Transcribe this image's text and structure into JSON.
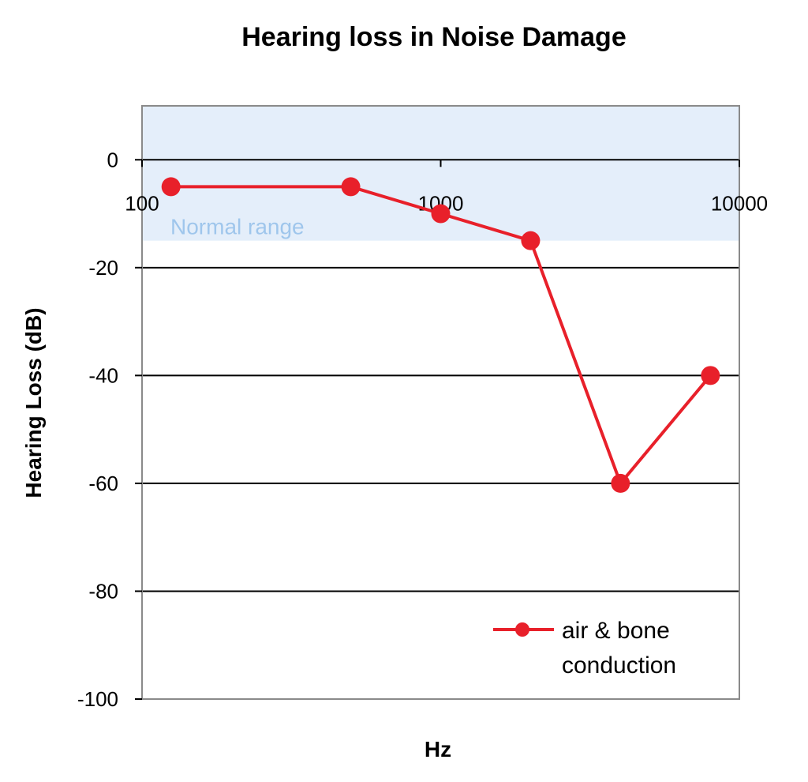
{
  "chart_data": {
    "type": "line",
    "title": "Hearing loss in Noise Damage",
    "xlabel": "Hz",
    "ylabel": "Hearing Loss (dB)",
    "x_scale": "log",
    "xlim": [
      100,
      10000
    ],
    "ylim": [
      -100,
      10
    ],
    "x_ticks": [
      100,
      1000,
      10000
    ],
    "x_tick_labels": [
      "100",
      "1000",
      "10000"
    ],
    "y_ticks": [
      0,
      -20,
      -40,
      -60,
      -80,
      -100
    ],
    "y_tick_labels": [
      "0",
      "-20",
      "-40",
      "-60",
      "-80",
      "-100"
    ],
    "grid": "horizontal",
    "legend_position": "bottom-right",
    "band": {
      "label": "Normal range",
      "from": 10,
      "to": -15,
      "color": "#e4eefa"
    },
    "series": [
      {
        "name": "air & bone conduction",
        "color": "#e8202a",
        "x": [
          125,
          500,
          1000,
          2000,
          4000,
          8000
        ],
        "y": [
          -5,
          -5,
          -10,
          -15,
          -60,
          -40
        ]
      }
    ],
    "legend_lines": [
      "air & bone",
      "conduction"
    ]
  }
}
